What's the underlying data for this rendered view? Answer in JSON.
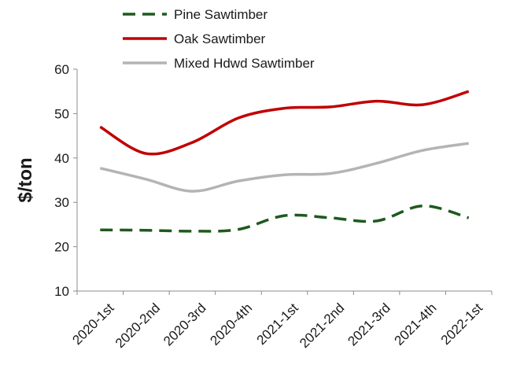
{
  "chart_data": {
    "type": "line",
    "categories": [
      "2020-1st",
      "2020-2nd",
      "2020-3rd",
      "2020-4th",
      "2021-1st",
      "2021-2nd",
      "2021-3rd",
      "2021-4th",
      "2022-1st"
    ],
    "series": [
      {
        "name": "Pine Sawtimber",
        "values": [
          23.8,
          23.7,
          23.5,
          23.9,
          27.0,
          26.5,
          25.8,
          29.2,
          26.5
        ],
        "color": "#1e5a1e",
        "style": "dashed"
      },
      {
        "name": "Oak Sawtimber",
        "values": [
          47.0,
          41.0,
          43.5,
          49.0,
          51.2,
          51.5,
          52.8,
          52.0,
          55.0
        ],
        "color": "#c00000",
        "style": "solid"
      },
      {
        "name": "Mixed Hdwd Sawtimber",
        "values": [
          37.7,
          35.2,
          32.5,
          34.8,
          36.2,
          36.5,
          38.8,
          41.7,
          43.3
        ],
        "color": "#b4b4b4",
        "style": "solid"
      }
    ],
    "title": "",
    "xlabel": "",
    "ylabel": "$/ton",
    "ylim": [
      10,
      60
    ],
    "yticks": [
      10,
      20,
      30,
      40,
      50,
      60
    ],
    "grid": false,
    "legend_position": "top"
  }
}
